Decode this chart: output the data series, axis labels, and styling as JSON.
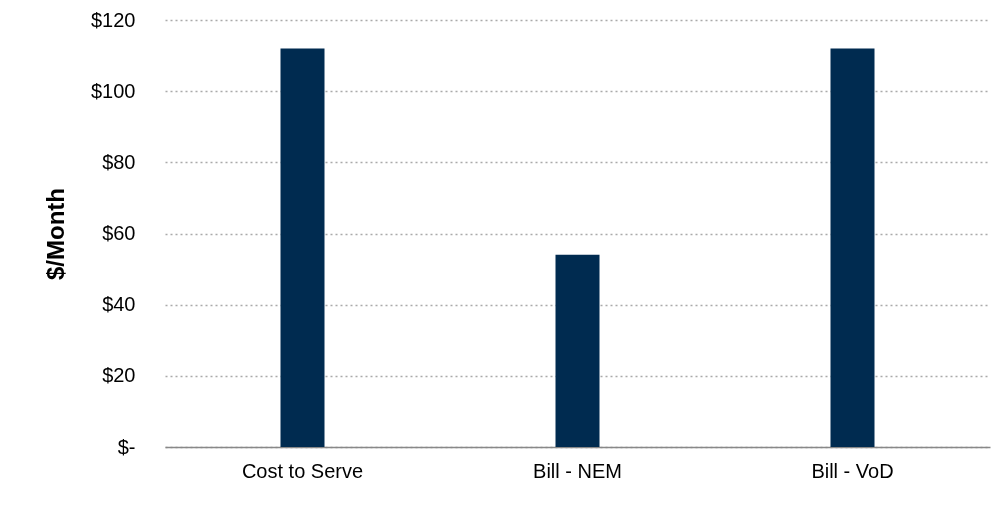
{
  "chart_data": {
    "type": "bar",
    "ylabel": "$/Month",
    "categories": [
      "Cost to Serve",
      "Bill - NEM",
      "Bill - VoD"
    ],
    "values": [
      112,
      54,
      112
    ],
    "color": "#002b50",
    "ylim": [
      0,
      120
    ],
    "yticks": [
      {
        "value": 0,
        "label": "$-"
      },
      {
        "value": 20,
        "label": "$20"
      },
      {
        "value": 40,
        "label": "$40"
      },
      {
        "value": 60,
        "label": "$60"
      },
      {
        "value": 80,
        "label": "$80"
      },
      {
        "value": 100,
        "label": "$100"
      },
      {
        "value": 120,
        "label": "$120"
      }
    ],
    "grid": "y"
  }
}
